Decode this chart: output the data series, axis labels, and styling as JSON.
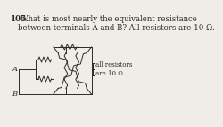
{
  "title_bold": "105.",
  "title_text": " What is most nearly the equivalent resistance\nbetween terminals A and B? All resistors are 10 Ω.",
  "annotation": "all resistors\nare 10 Ω",
  "terminal_A": "A",
  "terminal_B": "B",
  "bg_color": "#f0ede8",
  "text_color": "#2a2a2a",
  "line_color": "#2a2a2a",
  "resistor_color": "#2a2a2a",
  "font_size_title": 6.2,
  "font_size_label": 6.0,
  "font_size_annot": 5.0
}
